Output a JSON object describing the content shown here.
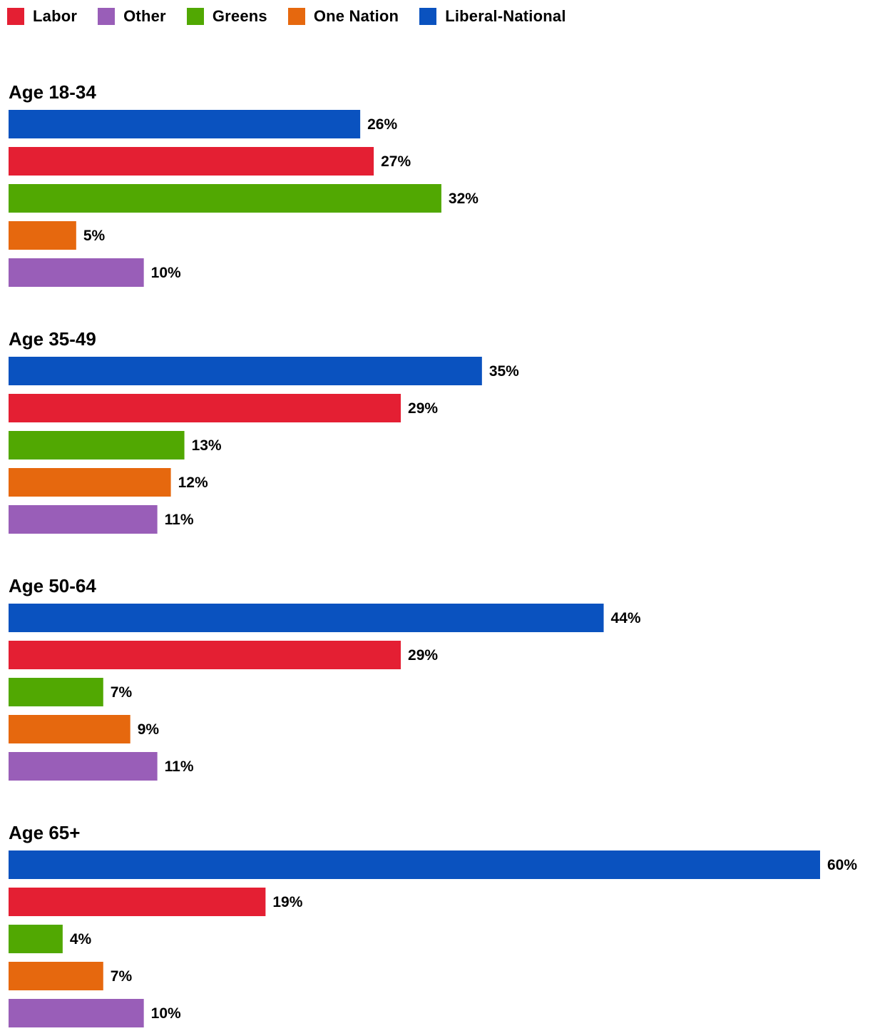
{
  "chart_data": {
    "type": "bar",
    "orientation": "horizontal",
    "xlim": [
      0,
      60
    ],
    "value_suffix": "%",
    "legend": [
      {
        "name": "Labor",
        "color": "#e41f33"
      },
      {
        "name": "Other",
        "color": "#995eb8"
      },
      {
        "name": "Greens",
        "color": "#51a802"
      },
      {
        "name": "One Nation",
        "color": "#e6680e"
      },
      {
        "name": "Liberal-National",
        "color": "#0a52bf"
      }
    ],
    "bar_order": [
      "Liberal-National",
      "Labor",
      "Greens",
      "One Nation",
      "Other"
    ],
    "groups": [
      {
        "label": "Age 18-34",
        "values": [
          26,
          27,
          32,
          5,
          10
        ]
      },
      {
        "label": "Age 35-49",
        "values": [
          35,
          29,
          13,
          12,
          11
        ]
      },
      {
        "label": "Age 50-64",
        "values": [
          44,
          29,
          7,
          9,
          11
        ]
      },
      {
        "label": "Age 65+",
        "values": [
          60,
          19,
          4,
          7,
          10
        ]
      }
    ]
  }
}
